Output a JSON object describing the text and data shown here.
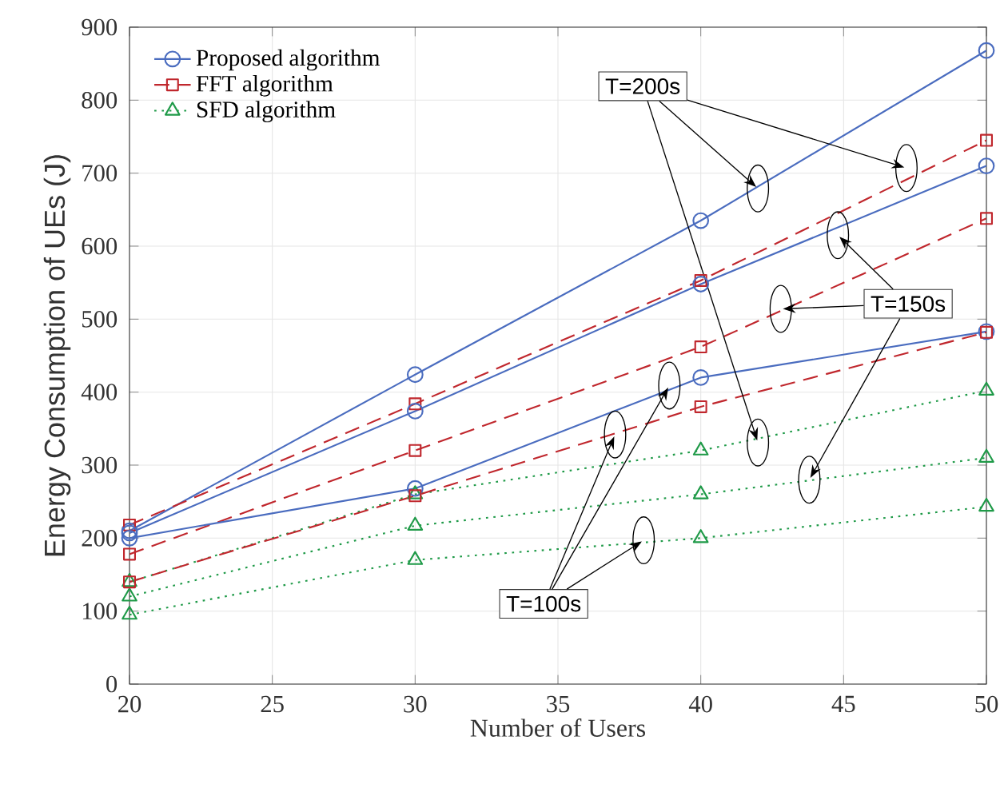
{
  "chart_data": {
    "type": "line",
    "xlabel": "Number of Users",
    "ylabel": "Energy Consumption of UEs (J)",
    "x": [
      20,
      30,
      40,
      50
    ],
    "xlim": [
      20,
      50
    ],
    "xticks": [
      20,
      25,
      30,
      35,
      40,
      45,
      50
    ],
    "ylim": [
      0,
      900
    ],
    "yticks": [
      0,
      100,
      200,
      300,
      400,
      500,
      600,
      700,
      800,
      900
    ],
    "grid": true,
    "legend": "top left",
    "annotations": [
      {
        "text": "T=200s",
        "x": 42,
        "y": 679
      },
      {
        "text": "T=150s",
        "x": 42.8,
        "y": 514
      },
      {
        "text": "T=100s",
        "x": 38.9,
        "y": 409
      }
    ],
    "series": [
      {
        "name": "Proposed algorithm",
        "color": "#4a6cbf",
        "marker": "circle",
        "line_style": "solid",
        "values": [
          210,
          424,
          635,
          868
        ]
      },
      {
        "name": "FFT algorithm",
        "color": "#c0272d",
        "marker": "square",
        "line_style": "dashed",
        "values": [
          218,
          384,
          553,
          745
        ]
      },
      {
        "name": "SFD algorithm",
        "color": "#1f9a48",
        "marker": "triangle",
        "line_style": "dotted",
        "values": [
          140,
          260,
          320,
          402
        ]
      },
      {
        "color": "#4a6cbf",
        "marker": "circle",
        "line_style": "solid",
        "values": [
          207,
          374,
          548,
          710
        ]
      },
      {
        "color": "#c0272d",
        "marker": "square",
        "line_style": "dashed",
        "values": [
          178,
          320,
          462,
          638
        ]
      },
      {
        "color": "#1f9a48",
        "marker": "triangle",
        "line_style": "dotted",
        "values": [
          120,
          217,
          260,
          310
        ]
      },
      {
        "color": "#4a6cbf",
        "marker": "circle",
        "line_style": "solid",
        "values": [
          200,
          268,
          420,
          483
        ]
      },
      {
        "color": "#c0272d",
        "marker": "square",
        "line_style": "dashed",
        "values": [
          140,
          258,
          380,
          482
        ]
      },
      {
        "color": "#1f9a48",
        "marker": "triangle",
        "line_style": "dotted",
        "values": [
          95,
          170,
          200,
          243
        ]
      }
    ]
  }
}
